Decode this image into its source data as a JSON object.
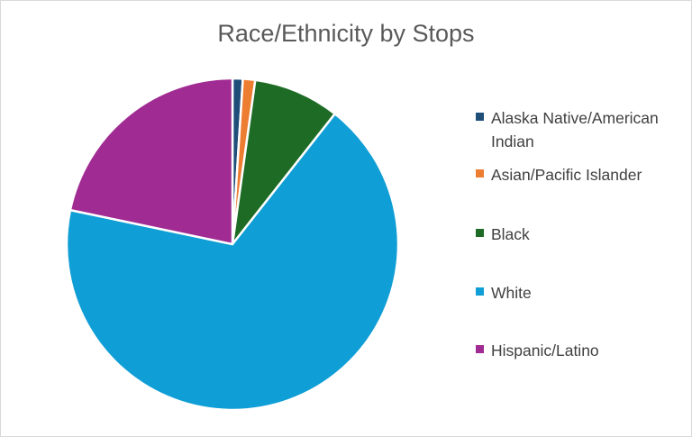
{
  "chart_data": {
    "type": "pie",
    "title": "Race/Ethnicity by Stops",
    "categories": [
      "Alaska Native/American Indian",
      "Asian/Pacific Islander",
      "Black",
      "White",
      "Hispanic/Latino"
    ],
    "values": [
      1.0,
      1.2,
      8.4,
      67.7,
      21.7
    ],
    "colors": [
      "#1F4E79",
      "#ED7D31",
      "#1E6B25",
      "#0F9ED5",
      "#A02B93"
    ],
    "start_angle_deg": 0,
    "direction": "clockwise",
    "legend_position": "right"
  }
}
